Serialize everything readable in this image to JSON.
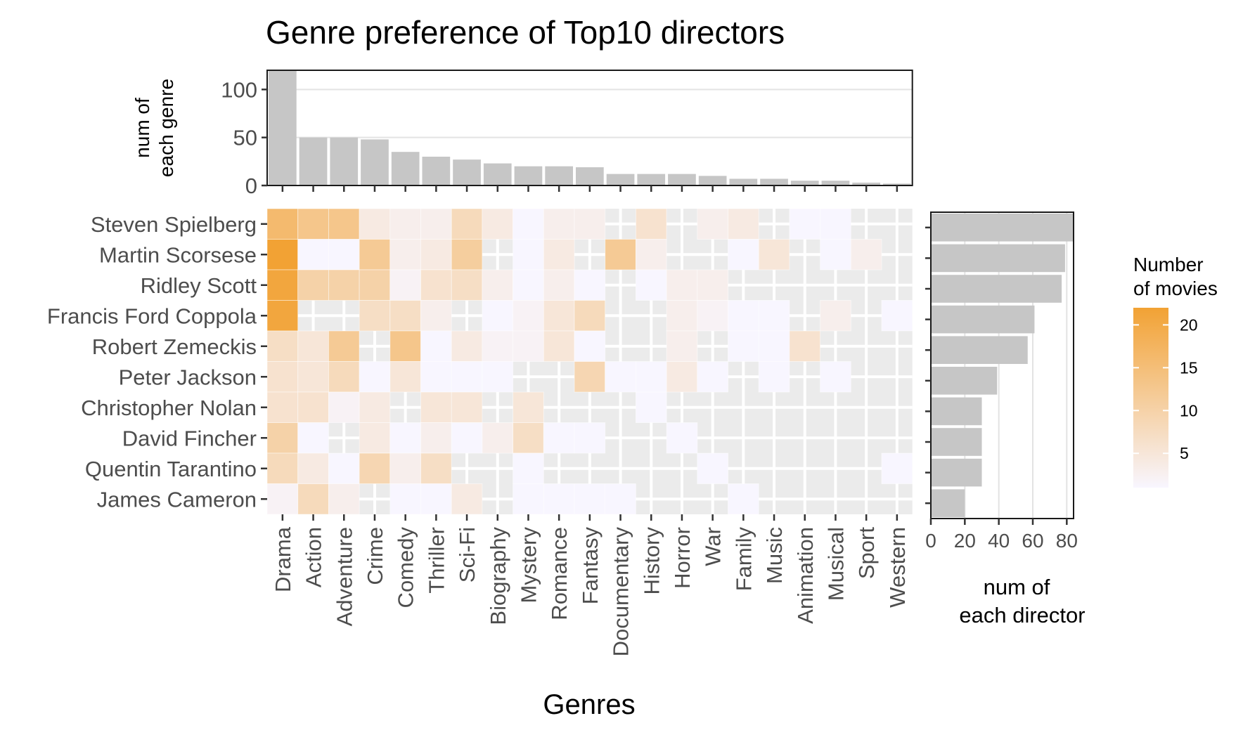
{
  "colors": {
    "panel_bg": "#ebebeb",
    "grid": "#ffffff",
    "bar": "#c6c6c6",
    "low": "#f8f6ff",
    "high": "#f2a234",
    "text": "#4d4d4d"
  },
  "chart_data": {
    "type": "heatmap",
    "title": "Genre preference of Top10 directors",
    "xlabel": "Genres",
    "genres": [
      "Drama",
      "Action",
      "Adventure",
      "Crime",
      "Comedy",
      "Thriller",
      "Sci-Fi",
      "Biography",
      "Mystery",
      "Romance",
      "Fantasy",
      "Documentary",
      "History",
      "Horror",
      "War",
      "Family",
      "Music",
      "Animation",
      "Musical",
      "Sport",
      "Western"
    ],
    "directors": [
      "Steven Spielberg",
      "Martin Scorsese",
      "Ridley Scott",
      "Francis Ford Coppola",
      "Robert Zemeckis",
      "Peter Jackson",
      "Christopher Nolan",
      "David Fincher",
      "Quentin Tarantino",
      "James Cameron"
    ],
    "values": [
      [
        16,
        13,
        13,
        4,
        3,
        3,
        8,
        4,
        1,
        3,
        3,
        0,
        6,
        0,
        3,
        4,
        0,
        1,
        1,
        0,
        0
      ],
      [
        22,
        1,
        1,
        12,
        3,
        4,
        11,
        0,
        1,
        4,
        0,
        12,
        3,
        0,
        0,
        1,
        5,
        0,
        1,
        3,
        0
      ],
      [
        21,
        10,
        10,
        10,
        2,
        6,
        7,
        3,
        1,
        3,
        1,
        0,
        1,
        3,
        3,
        0,
        0,
        0,
        0,
        0,
        0
      ],
      [
        21,
        0,
        0,
        7,
        7,
        3,
        0,
        1,
        2,
        5,
        8,
        0,
        0,
        3,
        2,
        1,
        1,
        0,
        3,
        0,
        1
      ],
      [
        7,
        5,
        12,
        0,
        13,
        1,
        4,
        2,
        2,
        5,
        1,
        0,
        0,
        3,
        0,
        1,
        1,
        6,
        0,
        0,
        0
      ],
      [
        6,
        5,
        8,
        1,
        5,
        1,
        1,
        1,
        0,
        0,
        9,
        1,
        1,
        4,
        1,
        0,
        1,
        0,
        1,
        0,
        0
      ],
      [
        6,
        6,
        2,
        4,
        0,
        5,
        5,
        0,
        5,
        0,
        0,
        0,
        1,
        0,
        0,
        0,
        0,
        0,
        0,
        0,
        0
      ],
      [
        10,
        1,
        0,
        4,
        1,
        3,
        1,
        3,
        7,
        1,
        1,
        0,
        0,
        1,
        0,
        0,
        0,
        0,
        0,
        0,
        0
      ],
      [
        8,
        4,
        1,
        9,
        3,
        7,
        0,
        0,
        1,
        0,
        0,
        0,
        0,
        0,
        1,
        0,
        0,
        0,
        0,
        0,
        1
      ],
      [
        2,
        8,
        3,
        0,
        1,
        1,
        4,
        0,
        1,
        1,
        1,
        1,
        0,
        0,
        0,
        1,
        0,
        0,
        0,
        0,
        0
      ]
    ],
    "legend": {
      "title_line1": "Number",
      "title_line2": "of movies",
      "ticks": [
        5,
        10,
        15,
        20
      ],
      "range": [
        1,
        22
      ]
    },
    "top_bar": {
      "ylabel_line1": "num of",
      "ylabel_line2": "each genre",
      "ticks": [
        0,
        50,
        100
      ],
      "ylim": [
        0,
        120
      ],
      "values": [
        120,
        50,
        50,
        48,
        35,
        30,
        27,
        23,
        20,
        20,
        19,
        12,
        12,
        12,
        10,
        7,
        7,
        5,
        5,
        3,
        2
      ]
    },
    "right_bar": {
      "xlabel_line1": "num of",
      "xlabel_line2": "each director",
      "ticks": [
        0,
        20,
        40,
        60,
        80
      ],
      "xlim": [
        0,
        84
      ],
      "values": [
        84,
        79,
        77,
        61,
        57,
        39,
        30,
        30,
        30,
        20
      ]
    }
  }
}
